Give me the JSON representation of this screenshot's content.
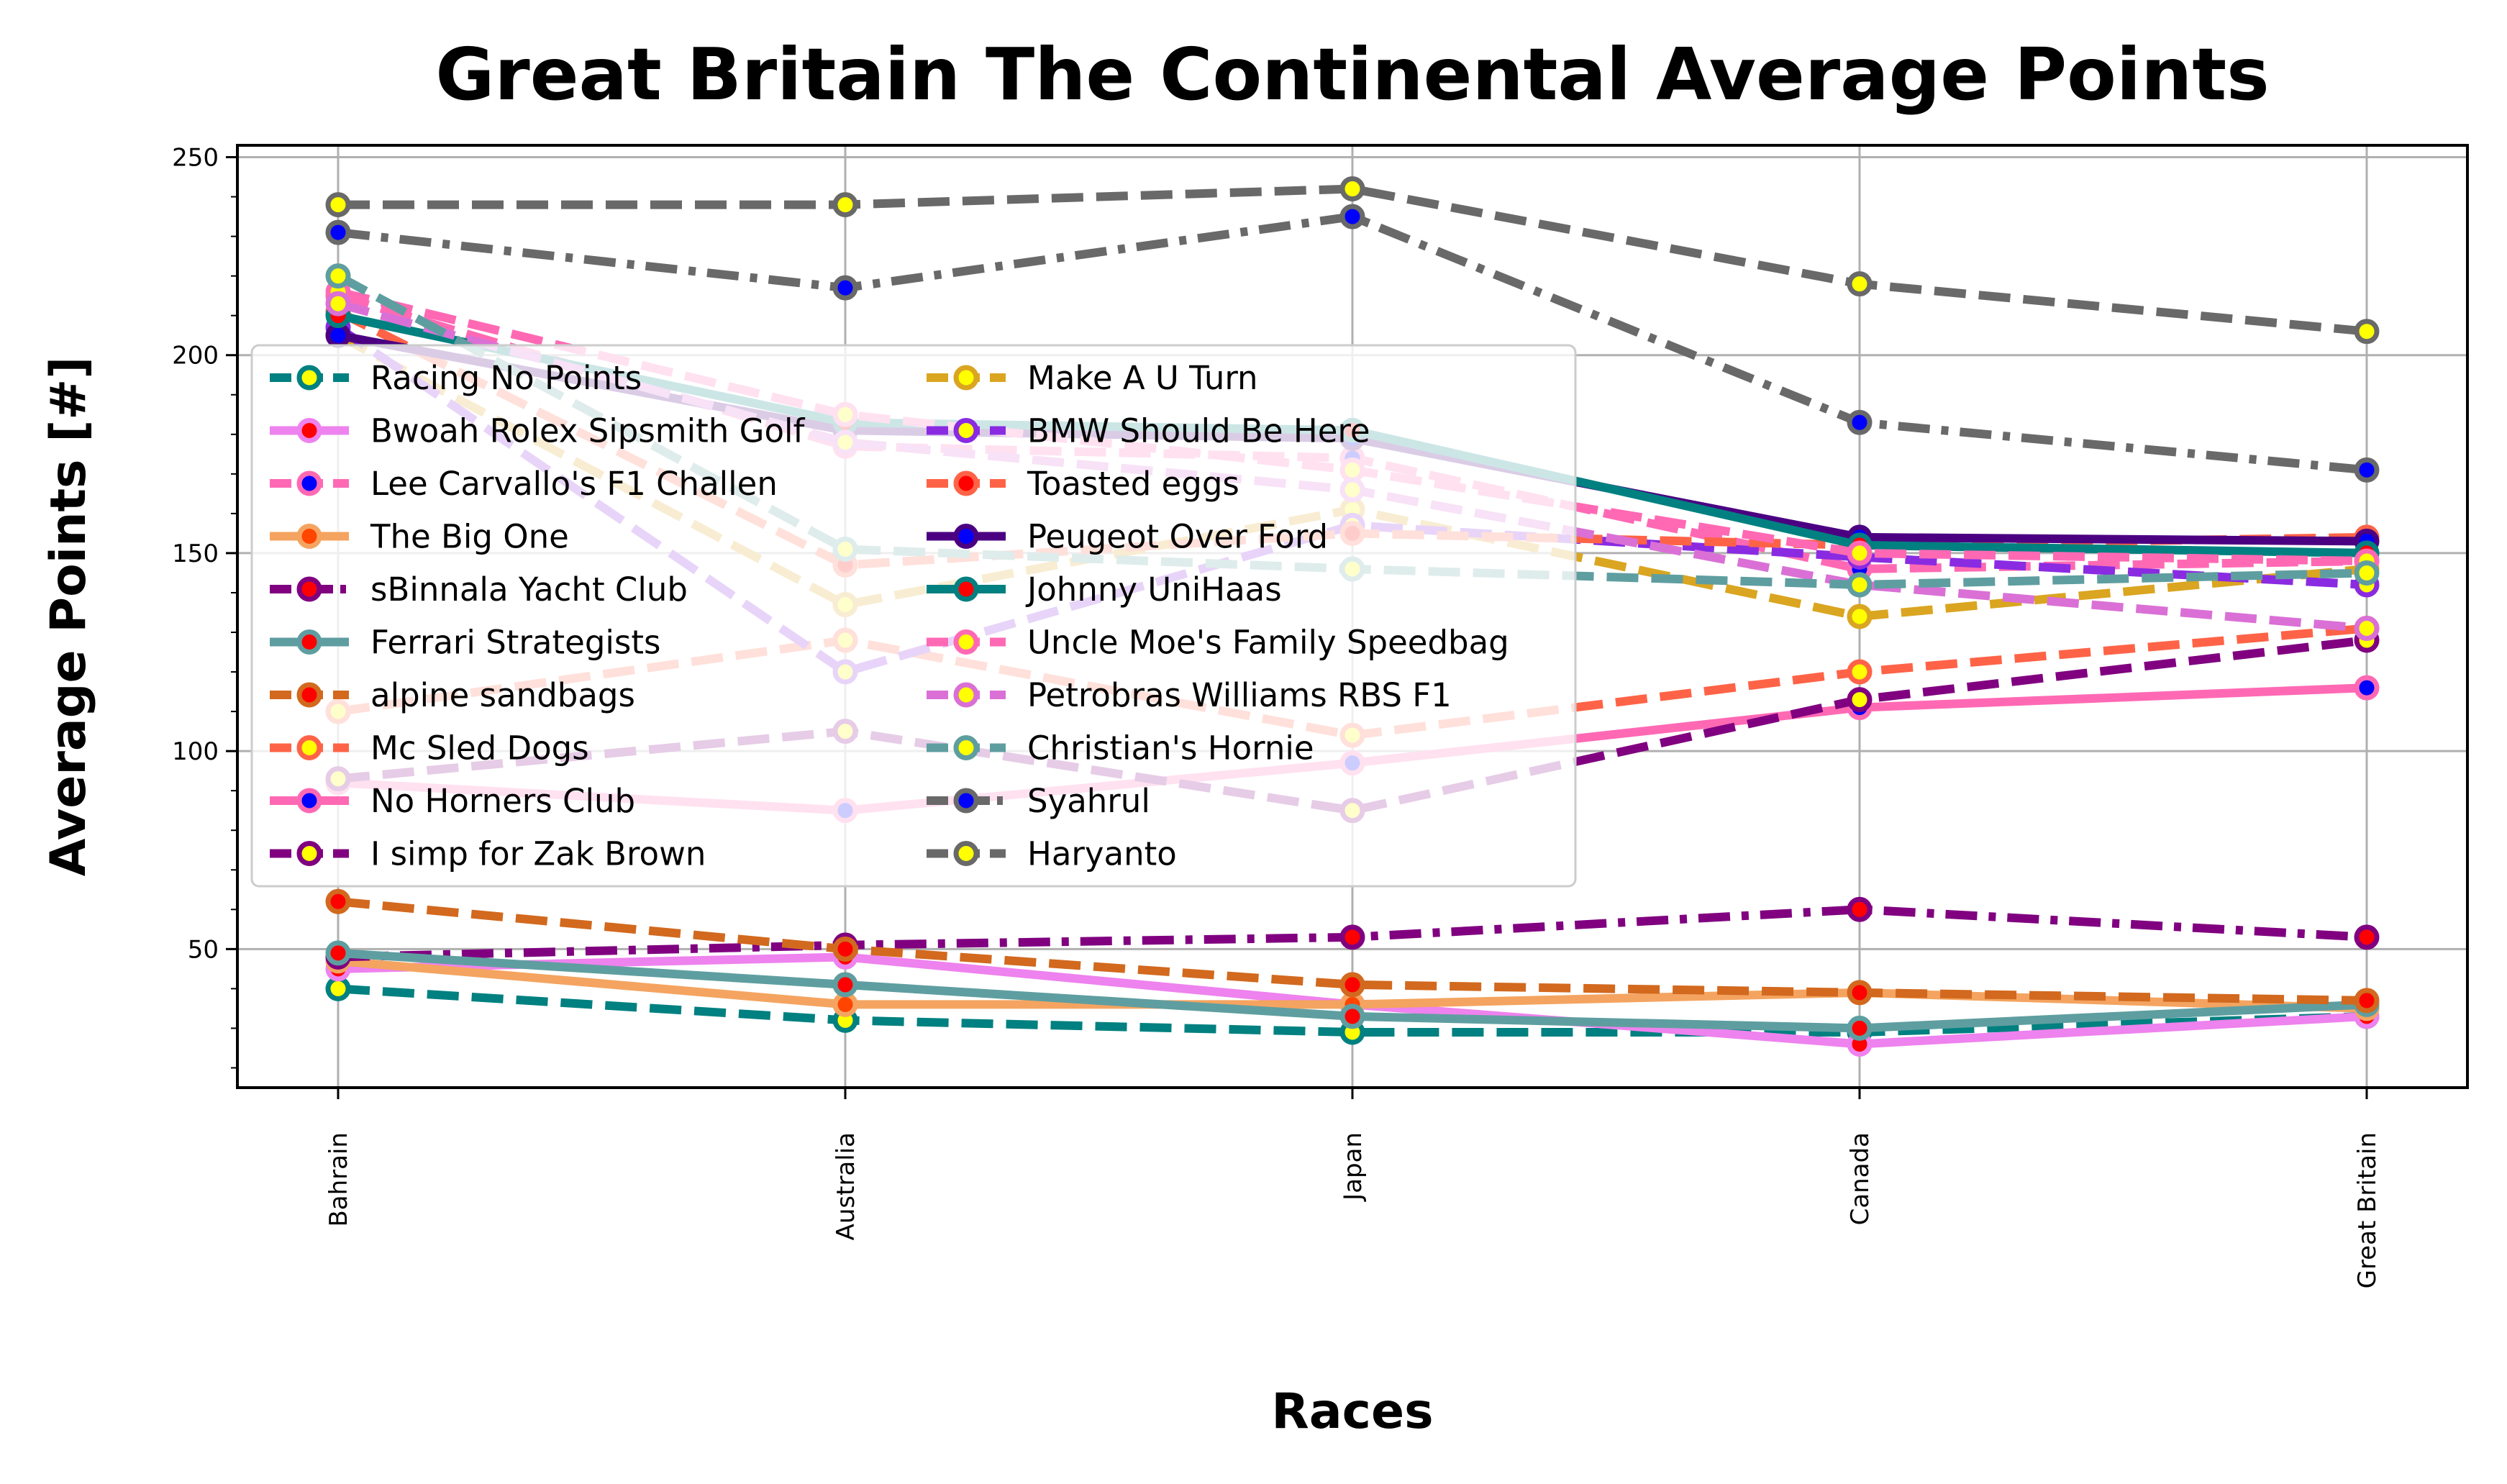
{
  "chart_data": {
    "type": "line",
    "title": "Great Britain The Continental Average Points",
    "xlabel": "Races",
    "ylabel": "Average Points [#]",
    "categories": [
      "Bahrain",
      "Australia",
      "Japan",
      "Canada",
      "Great Britain"
    ],
    "ylim": [
      15,
      253
    ],
    "yticks": [
      50,
      100,
      150,
      200,
      250
    ],
    "grid": true,
    "legend": "upper-left, 2 columns",
    "series": [
      {
        "name": "Racing No Points",
        "values": [
          40,
          32,
          29,
          29,
          33
        ],
        "color": "#008080",
        "dash": "dashed",
        "marker_face": "#ffff00"
      },
      {
        "name": "Bwoah Rolex Sipsmith Golf",
        "values": [
          45,
          48,
          36,
          26,
          33
        ],
        "color": "#ee82ee",
        "dash": "solid",
        "marker_face": "#ff0000"
      },
      {
        "name": "Lee Carvallo's F1 Challen",
        "values": [
          215,
          177,
          174,
          146,
          148
        ],
        "color": "#ff69b4",
        "dash": "dashed",
        "marker_face": "#0000ff"
      },
      {
        "name": "The Big One",
        "values": [
          47,
          36,
          36,
          39,
          35
        ],
        "color": "#f4a460",
        "dash": "solid",
        "marker_face": "#ff4500"
      },
      {
        "name": "sBinnala Yacht Club",
        "values": [
          48,
          51,
          53,
          60,
          53
        ],
        "color": "#800080",
        "dash": "dashdot",
        "marker_face": "#ff0000"
      },
      {
        "name": "Ferrari Strategists",
        "values": [
          49,
          41,
          33,
          30,
          36
        ],
        "color": "#5f9ea0",
        "dash": "solid",
        "marker_face": "#ff0000"
      },
      {
        "name": "alpine sandbags",
        "values": [
          62,
          50,
          41,
          39,
          37
        ],
        "color": "#d2691e",
        "dash": "dashed",
        "marker_face": "#ff0000"
      },
      {
        "name": "Mc Sled Dogs",
        "values": [
          110,
          128,
          104,
          120,
          131
        ],
        "color": "#ff6347",
        "dash": "dashed",
        "marker_face": "#ffff00"
      },
      {
        "name": "No Horners Club",
        "values": [
          92,
          85,
          97,
          111,
          116
        ],
        "color": "#ff69b4",
        "dash": "solid",
        "marker_face": "#0000ff"
      },
      {
        "name": "I simp for Zak Brown",
        "values": [
          93,
          105,
          85,
          113,
          128
        ],
        "color": "#800080",
        "dash": "dashed",
        "marker_face": "#ffff00"
      },
      {
        "name": "Make A U Turn",
        "values": [
          205,
          137,
          161,
          134,
          146
        ],
        "color": "#daa520",
        "dash": "dashed",
        "marker_face": "#ffff00"
      },
      {
        "name": "BMW Should Be Here",
        "values": [
          207,
          120,
          157,
          149,
          142
        ],
        "color": "#8a2be2",
        "dash": "dashed",
        "marker_face": "#ffff00"
      },
      {
        "name": "Toasted eggs",
        "values": [
          211,
          147,
          155,
          152,
          154
        ],
        "color": "#ff6347",
        "dash": "dashed",
        "marker_face": "#ff0000"
      },
      {
        "name": "Peugeot Over Ford",
        "values": [
          205,
          181,
          179,
          154,
          153
        ],
        "color": "#4b0082",
        "dash": "solid",
        "marker_face": "#0000ff"
      },
      {
        "name": "Johnny UniHaas",
        "values": [
          210,
          183,
          181,
          152,
          150
        ],
        "color": "#008080",
        "dash": "solid",
        "marker_face": "#ff0000"
      },
      {
        "name": "Uncle Moe's Family Speedbag",
        "values": [
          216,
          185,
          171,
          150,
          148
        ],
        "color": "#ff69b4",
        "dash": "dashed",
        "marker_face": "#ffff00"
      },
      {
        "name": "Petrobras Williams RBS F1",
        "values": [
          213,
          178,
          166,
          142,
          131
        ],
        "color": "#da70d6",
        "dash": "dashed",
        "marker_face": "#ffff00"
      },
      {
        "name": "Christian's Hornie",
        "values": [
          220,
          151,
          146,
          142,
          145
        ],
        "color": "#5f9ea0",
        "dash": "dashed",
        "marker_face": "#ffff00"
      },
      {
        "name": "Syahrul",
        "values": [
          231,
          217,
          235,
          183,
          171
        ],
        "color": "#696969",
        "dash": "dashdot",
        "marker_face": "#0000ff"
      },
      {
        "name": "Haryanto",
        "values": [
          238,
          238,
          242,
          218,
          206
        ],
        "color": "#696969",
        "dash": "dashed",
        "marker_face": "#ffff00"
      }
    ]
  }
}
